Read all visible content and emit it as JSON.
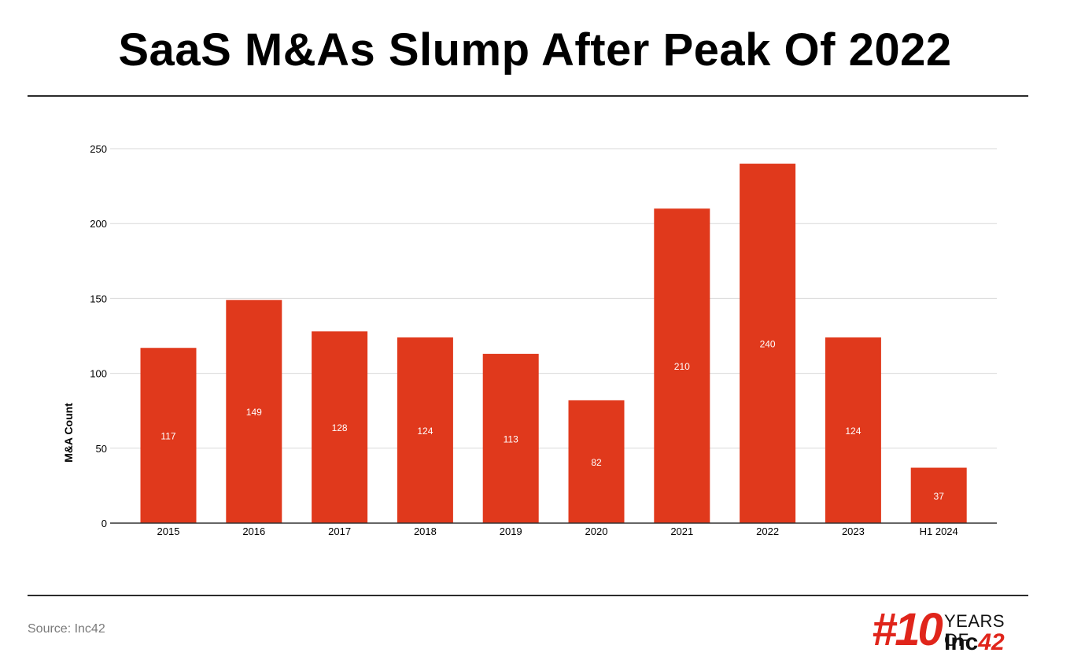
{
  "title": "SaaS M&As Slump After Peak Of 2022",
  "source": "Source: Inc42",
  "logo": {
    "hash": "#10",
    "years": "YEARS OF",
    "brand": "Inc",
    "brand_num": "42"
  },
  "colors": {
    "bar": "#e0391c",
    "grid": "#d9d9d9",
    "axis": "#333333",
    "logo_red": "#e0251b"
  },
  "chart_data": {
    "type": "bar",
    "categories": [
      "2015",
      "2016",
      "2017",
      "2018",
      "2019",
      "2020",
      "2021",
      "2022",
      "2023",
      "H1 2024"
    ],
    "values": [
      117,
      149,
      128,
      124,
      113,
      82,
      210,
      240,
      124,
      37
    ],
    "ylabel": "M&A Count",
    "xlabel": "",
    "ylim": [
      0,
      250
    ],
    "yticks": [
      0,
      50,
      100,
      150,
      200,
      250
    ],
    "grid": true,
    "data_labels": true
  }
}
